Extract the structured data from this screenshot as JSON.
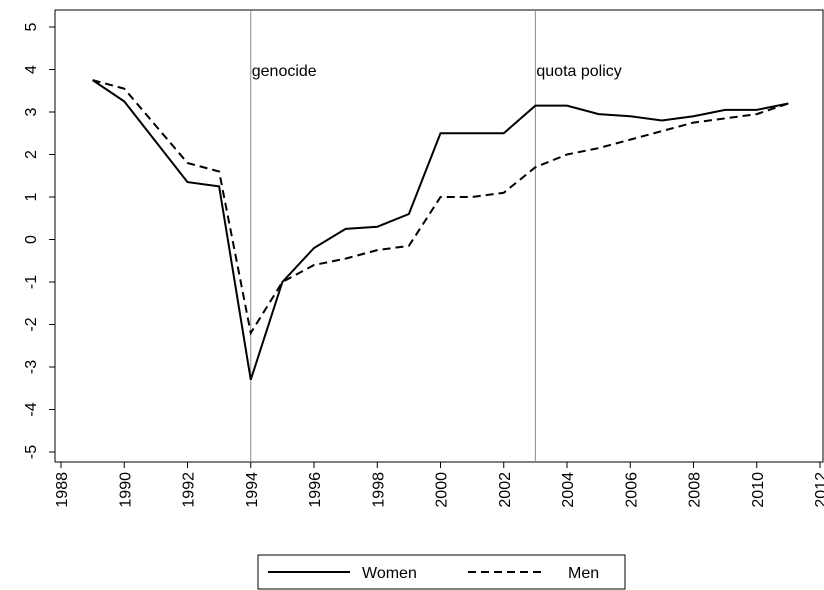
{
  "chart_data": {
    "type": "line",
    "x": [
      1989,
      1990,
      1992,
      1993,
      1994,
      1995,
      1996,
      1997,
      1998,
      1999,
      2000,
      2001,
      2002,
      2003,
      2004,
      2005,
      2006,
      2007,
      2008,
      2009,
      2010,
      2011
    ],
    "series": [
      {
        "name": "Women",
        "color": "#000000",
        "dash": "solid",
        "values": [
          3.75,
          3.25,
          1.35,
          1.25,
          -3.3,
          -1.0,
          -0.2,
          0.25,
          0.3,
          0.6,
          2.5,
          2.5,
          2.5,
          3.15,
          3.15,
          2.95,
          2.9,
          2.8,
          2.9,
          3.05,
          3.05,
          3.2
        ]
      },
      {
        "name": "Men",
        "color": "#000000",
        "dash": "dashed",
        "values": [
          3.75,
          3.55,
          1.8,
          1.6,
          -2.2,
          -1.0,
          -0.6,
          -0.45,
          -0.25,
          -0.15,
          1.0,
          1.0,
          1.1,
          1.7,
          2.0,
          2.15,
          2.35,
          2.55,
          2.75,
          2.85,
          2.95,
          3.2
        ]
      }
    ],
    "xlim": [
      1988,
      2012
    ],
    "xticks": [
      1988,
      1990,
      1992,
      1994,
      1996,
      1998,
      2000,
      2002,
      2004,
      2006,
      2008,
      2010,
      2012
    ],
    "ylim": [
      -5,
      5
    ],
    "yticks": [
      -5,
      -4,
      -3,
      -2,
      -1,
      0,
      1,
      2,
      3,
      4,
      5
    ],
    "annotations": [
      {
        "x": 1994,
        "text": "genocide"
      },
      {
        "x": 2003,
        "text": "quota policy"
      }
    ],
    "legend": "bottom"
  }
}
